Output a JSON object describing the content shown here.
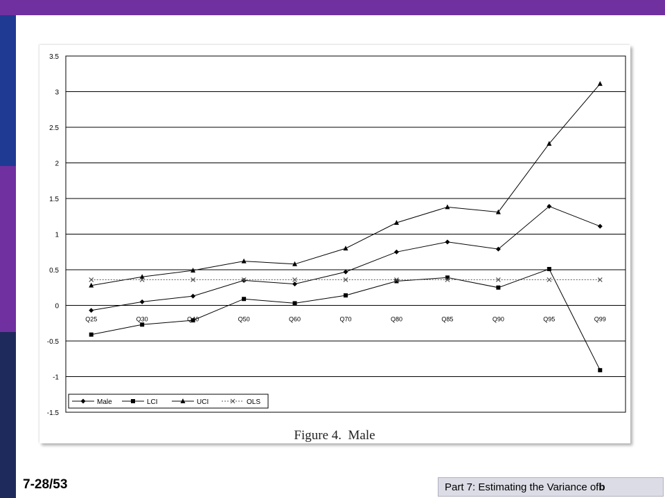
{
  "slide": {
    "number": "7-28/53",
    "footer_prefix": "Part 7: Estimating the Variance of ",
    "footer_bold": "b"
  },
  "colors": {
    "topbar": "#7030a0",
    "strip_blue": "#1f3a93",
    "strip_purple": "#7030a0",
    "strip_navy": "#1f2a5c",
    "series_line": "#000000",
    "ols_line": "#555555",
    "footer_box": "#dcdce6"
  },
  "chart_data": {
    "type": "line",
    "title": "Figure 4.  Male",
    "categories": [
      "Q25",
      "Q30",
      "Q40",
      "Q50",
      "Q60",
      "Q70",
      "Q80",
      "Q85",
      "Q90",
      "Q95",
      "Q99"
    ],
    "ylim": [
      -1.5,
      3.5
    ],
    "yticks": [
      "3.5",
      "3",
      "2.5",
      "2",
      "1.5",
      "1",
      "0.5",
      "0",
      "-0.5",
      "-1",
      "-1.5"
    ],
    "ytick_values": [
      3.5,
      3,
      2.5,
      2,
      1.5,
      1,
      0.5,
      0,
      -0.5,
      -1,
      -1.5
    ],
    "grid": "horizontal",
    "legend_position": "bottom-left",
    "series": [
      {
        "name": "Male",
        "marker": "diamond",
        "style": "solid",
        "values": [
          -0.07,
          0.05,
          0.13,
          0.35,
          0.3,
          0.47,
          0.75,
          0.89,
          0.79,
          1.39,
          1.11
        ]
      },
      {
        "name": "LCI",
        "marker": "square",
        "style": "solid",
        "values": [
          -0.41,
          -0.27,
          -0.21,
          0.09,
          0.03,
          0.14,
          0.34,
          0.39,
          0.25,
          0.51,
          -0.91
        ]
      },
      {
        "name": "UCI",
        "marker": "triangle",
        "style": "solid",
        "values": [
          0.28,
          0.4,
          0.49,
          0.62,
          0.58,
          0.8,
          1.16,
          1.38,
          1.31,
          2.27,
          3.11
        ]
      },
      {
        "name": "OLS",
        "marker": "x",
        "style": "dashed",
        "values": [
          0.36,
          0.36,
          0.36,
          0.36,
          0.36,
          0.36,
          0.36,
          0.36,
          0.36,
          0.36,
          0.36
        ]
      }
    ]
  }
}
